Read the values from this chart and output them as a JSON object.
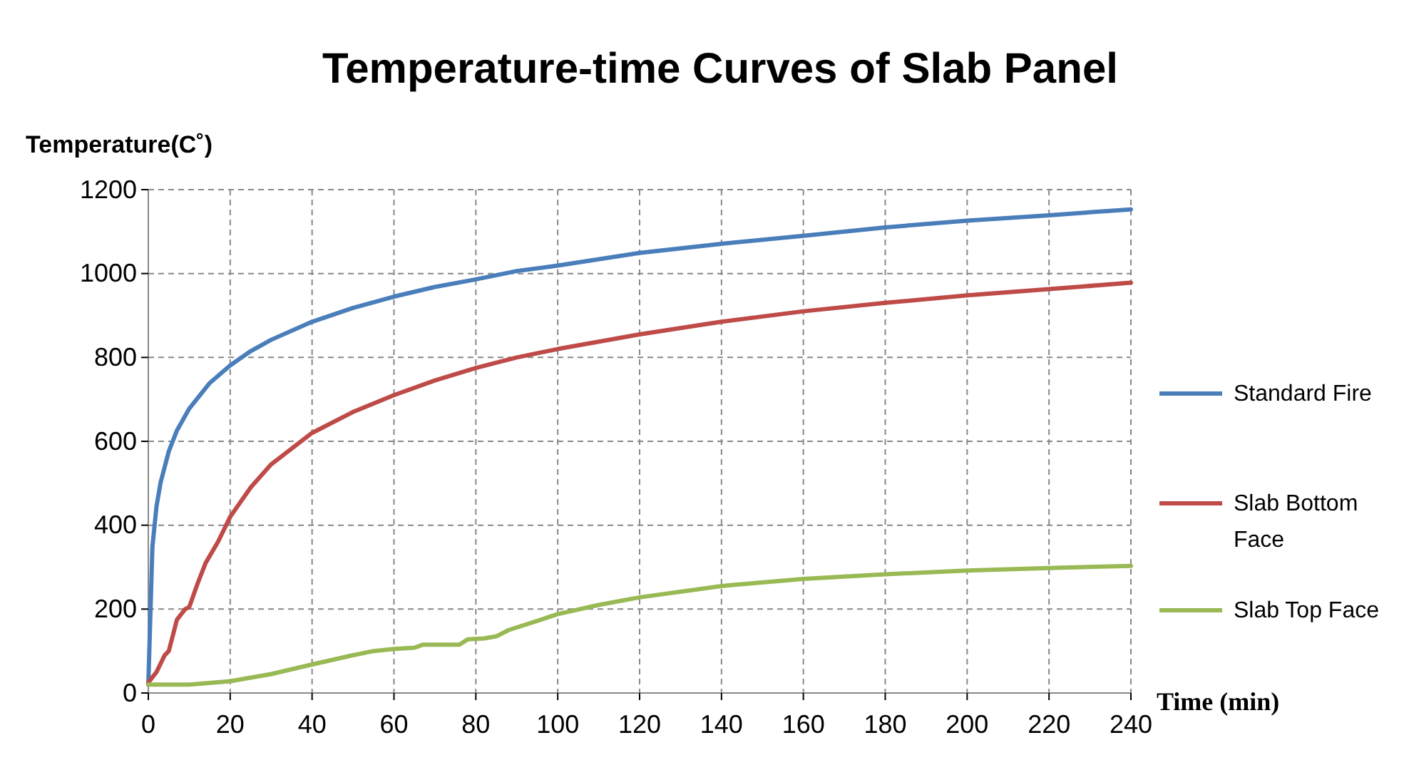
{
  "chart_data": {
    "type": "line",
    "title": "Temperature-time Curves of Slab Panel",
    "xlabel": "Time (min)",
    "ylabel": "Temperature(C˚)",
    "xlim": [
      0,
      240
    ],
    "ylim": [
      0,
      1200
    ],
    "xticks": [
      0,
      20,
      40,
      60,
      80,
      100,
      120,
      140,
      160,
      180,
      200,
      220,
      240
    ],
    "yticks": [
      0,
      200,
      400,
      600,
      800,
      1000,
      1200
    ],
    "grid": true,
    "legend": "right",
    "line_style": "solid",
    "marker": "none",
    "series": [
      {
        "name": "Standard Fire",
        "color": "#4a7ebb",
        "x": [
          0,
          1,
          2,
          3,
          5,
          7,
          10,
          15,
          20,
          25,
          30,
          40,
          50,
          60,
          70,
          80,
          90,
          100,
          120,
          140,
          160,
          180,
          200,
          220,
          240
        ],
        "values": [
          20,
          349,
          445,
          502,
          576,
          626,
          678,
          739,
          781,
          815,
          842,
          885,
          918,
          945,
          968,
          986,
          1006,
          1019,
          1049,
          1071,
          1090,
          1110,
          1126,
          1139,
          1153
        ]
      },
      {
        "name": "Slab Bottom Face",
        "color": "#be4b48",
        "x": [
          0,
          2,
          4,
          5,
          7,
          9,
          10,
          12,
          14,
          17,
          20,
          25,
          30,
          40,
          50,
          60,
          70,
          80,
          90,
          100,
          120,
          140,
          160,
          180,
          200,
          220,
          240
        ],
        "values": [
          25,
          50,
          90,
          100,
          175,
          200,
          205,
          260,
          310,
          360,
          420,
          490,
          545,
          620,
          670,
          710,
          745,
          775,
          800,
          820,
          855,
          885,
          910,
          930,
          948,
          963,
          978
        ]
      },
      {
        "name": "Slab Top Face",
        "color": "#98b954",
        "x": [
          0,
          10,
          20,
          30,
          40,
          50,
          55,
          60,
          65,
          67,
          72,
          76,
          78,
          82,
          85,
          88,
          95,
          100,
          110,
          120,
          140,
          160,
          180,
          200,
          220,
          240
        ],
        "values": [
          20,
          20,
          28,
          45,
          68,
          90,
          100,
          105,
          108,
          115,
          115,
          115,
          128,
          130,
          135,
          150,
          172,
          188,
          210,
          228,
          255,
          272,
          283,
          292,
          298,
          303
        ]
      }
    ]
  }
}
